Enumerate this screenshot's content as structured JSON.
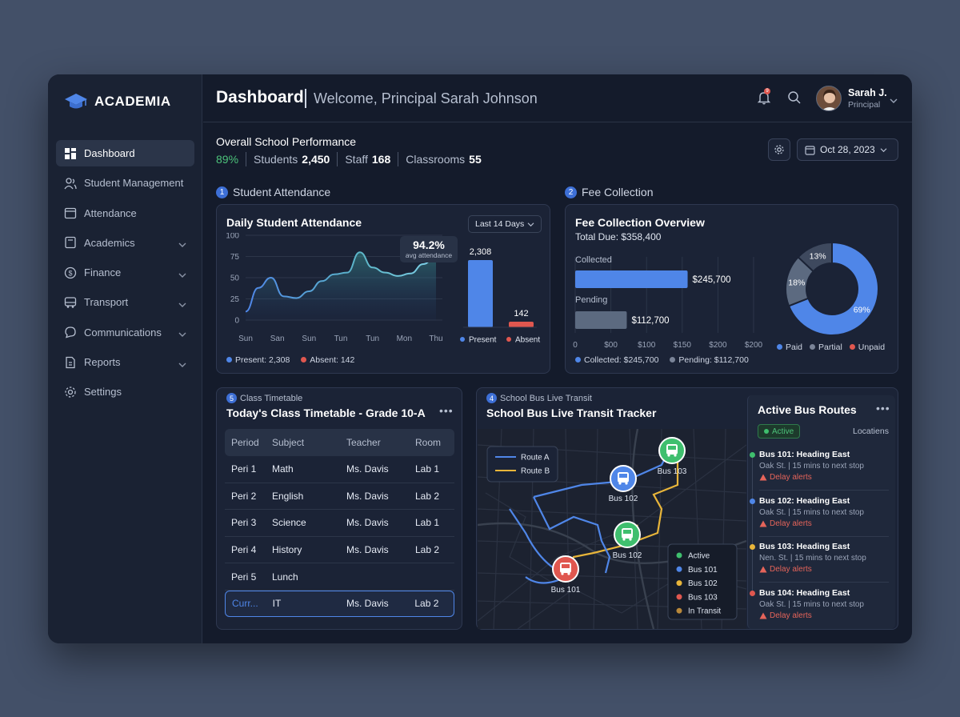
{
  "app": {
    "name": "ACADEMIA"
  },
  "sidebar": {
    "items": [
      {
        "label": "Dashboard",
        "icon": "dashboard-icon",
        "active": true,
        "chevron": false
      },
      {
        "label": "Student Management",
        "icon": "users-icon",
        "active": false,
        "chevron": false
      },
      {
        "label": "Attendance",
        "icon": "calendar-icon",
        "active": false,
        "chevron": false
      },
      {
        "label": "Academics",
        "icon": "book-icon",
        "active": false,
        "chevron": true
      },
      {
        "label": "Finance",
        "icon": "dollar-icon",
        "active": false,
        "chevron": true
      },
      {
        "label": "Transport",
        "icon": "bus-icon",
        "active": false,
        "chevron": true
      },
      {
        "label": "Communications",
        "icon": "chat-icon",
        "active": false,
        "chevron": true
      },
      {
        "label": "Reports",
        "icon": "report-icon",
        "active": false,
        "chevron": true
      },
      {
        "label": "Settings",
        "icon": "gear-icon",
        "active": false,
        "chevron": false
      }
    ]
  },
  "header": {
    "title": "Dashboard",
    "welcome": "Welcome, Principal Sarah Johnson",
    "notification_count": "9",
    "user": {
      "name": "Sarah J.",
      "role": "Principal"
    }
  },
  "performance": {
    "title": "Overall School Performance",
    "percent": "89%",
    "students_label": "Students",
    "students_value": "2,450",
    "staff_label": "Staff",
    "staff_value": "168",
    "classrooms_label": "Classrooms",
    "classrooms_value": "55",
    "date": "Oct 28, 2023"
  },
  "attendance": {
    "section_num": "1",
    "section_label": "Student Attendance",
    "title": "Daily Student Attendance",
    "range": "Last 14 Days",
    "tooltip_value": "94.2%",
    "tooltip_label": "avg attendance",
    "legend_present": "Present: 2,308",
    "legend_absent": "Absent: 142"
  },
  "fees": {
    "section_num": "2",
    "section_label": "Fee Collection",
    "title": "Fee Collection Overview",
    "total_due": "Total Due: $358,400",
    "collected_label": "Collected",
    "collected_value": "$245,700",
    "pending_label": "Pending",
    "pending_value": "$112,700",
    "legend_collected": "Collected: $245,700",
    "legend_pending": "Pending: $112,700"
  },
  "timetable": {
    "section_num": "5",
    "section_label": "Class Timetable",
    "title": "Today's Class Timetable - Grade 10-A",
    "columns": [
      "Period",
      "Subject",
      "Teacher",
      "Room"
    ],
    "rows": [
      {
        "period": "Peri 1",
        "subject": "Math",
        "teacher": "Ms. Davis",
        "room": "Lab 1"
      },
      {
        "period": "Peri 2",
        "subject": "English",
        "teacher": "Ms. Davis",
        "room": "Lab 2"
      },
      {
        "period": "Peri 3",
        "subject": "Science",
        "teacher": "Ms. Davis",
        "room": "Lab 1"
      },
      {
        "period": "Peri 4",
        "subject": "History",
        "teacher": "Ms. Davis",
        "room": "Lab 2"
      },
      {
        "period": "Peri 5",
        "subject": "Lunch",
        "teacher": "",
        "room": ""
      },
      {
        "period": "Curr...",
        "subject": "IT",
        "teacher": "Ms. Davis",
        "room": "Lab 2"
      }
    ]
  },
  "bus": {
    "section_num": "4",
    "section_label": "School Bus Live Transit",
    "title": "School Bus Live Transit Tracker",
    "route_legend": [
      "Route A",
      "Route B"
    ],
    "map_buses": [
      "Bus 101",
      "Bus 102",
      "Bus 102",
      "Bus 103"
    ],
    "status_legend": [
      {
        "label": "Active",
        "color": "#3fbf6e"
      },
      {
        "label": "Bus 101",
        "color": "#4f86e8"
      },
      {
        "label": "Bus 102",
        "color": "#e8b53a"
      },
      {
        "label": "Bus 103",
        "color": "#e0574f"
      },
      {
        "label": "In Transit",
        "color": "#b8883a"
      }
    ],
    "routes_title": "Active Bus Routes",
    "active_badge": "Active",
    "locations_label": "Locatiens",
    "routes": [
      {
        "name": "Bus 101: Heading East",
        "info": "Oak St. | 15 mins to next stop",
        "alert": "Delay alerts",
        "color": "#3fbf6e"
      },
      {
        "name": "Bus 102: Heading East",
        "info": "Oak St. | 15 mins to next stop",
        "alert": "Delay alerts",
        "color": "#4f86e8"
      },
      {
        "name": "Bus 103: Heading East",
        "info": "Nen. St. | 15 mins to next stop",
        "alert": "Delay alerts",
        "color": "#e8b53a"
      },
      {
        "name": "Bus 104: Heading East",
        "info": "Oak St. | 15 mins to next stop",
        "alert": "Delay alerts",
        "color": "#e0574f"
      }
    ]
  },
  "chart_data": [
    {
      "type": "area",
      "title": "Daily Student Attendance",
      "categories": [
        "Sun",
        "San",
        "Sun",
        "Tun",
        "Tun",
        "Mon",
        "Thu"
      ],
      "yticks": [
        0,
        25,
        50,
        75,
        100
      ],
      "ylim": [
        0,
        100
      ],
      "x": [
        0,
        0.4,
        0.8,
        1.2,
        1.6,
        2.0,
        2.4,
        2.8,
        3.2,
        3.6,
        4.0,
        4.4,
        4.8,
        5.2,
        5.6,
        6.0
      ],
      "values": [
        10,
        38,
        50,
        28,
        26,
        34,
        46,
        54,
        56,
        80,
        62,
        56,
        52,
        55,
        66,
        76
      ],
      "grid": true
    },
    {
      "type": "bar",
      "categories": [
        "Present",
        "Absent"
      ],
      "values": [
        2308,
        142
      ],
      "value_labels": [
        "2,308",
        "142"
      ],
      "colors": [
        "#4f86e8",
        "#e0574f"
      ]
    },
    {
      "type": "bar",
      "orientation": "horizontal",
      "categories": [
        "Collected",
        "Pending"
      ],
      "values": [
        245700,
        112700
      ],
      "xticks": [
        "0",
        "$00",
        "$100",
        "$150",
        "$200",
        "$200"
      ],
      "colors": [
        "#4f86e8",
        "#5c6a80"
      ]
    },
    {
      "type": "pie",
      "donut": true,
      "labels": [
        "Paid",
        "Partial",
        "Unpaid"
      ],
      "values": [
        69,
        18,
        13
      ],
      "value_labels": [
        "69%",
        "18%",
        "13%"
      ],
      "colors": [
        "#4f86e8",
        "#5c6a80",
        "#3e495e"
      ],
      "legend_colors": [
        "#4f86e8",
        "#7a8498",
        "#e0574f"
      ]
    }
  ]
}
